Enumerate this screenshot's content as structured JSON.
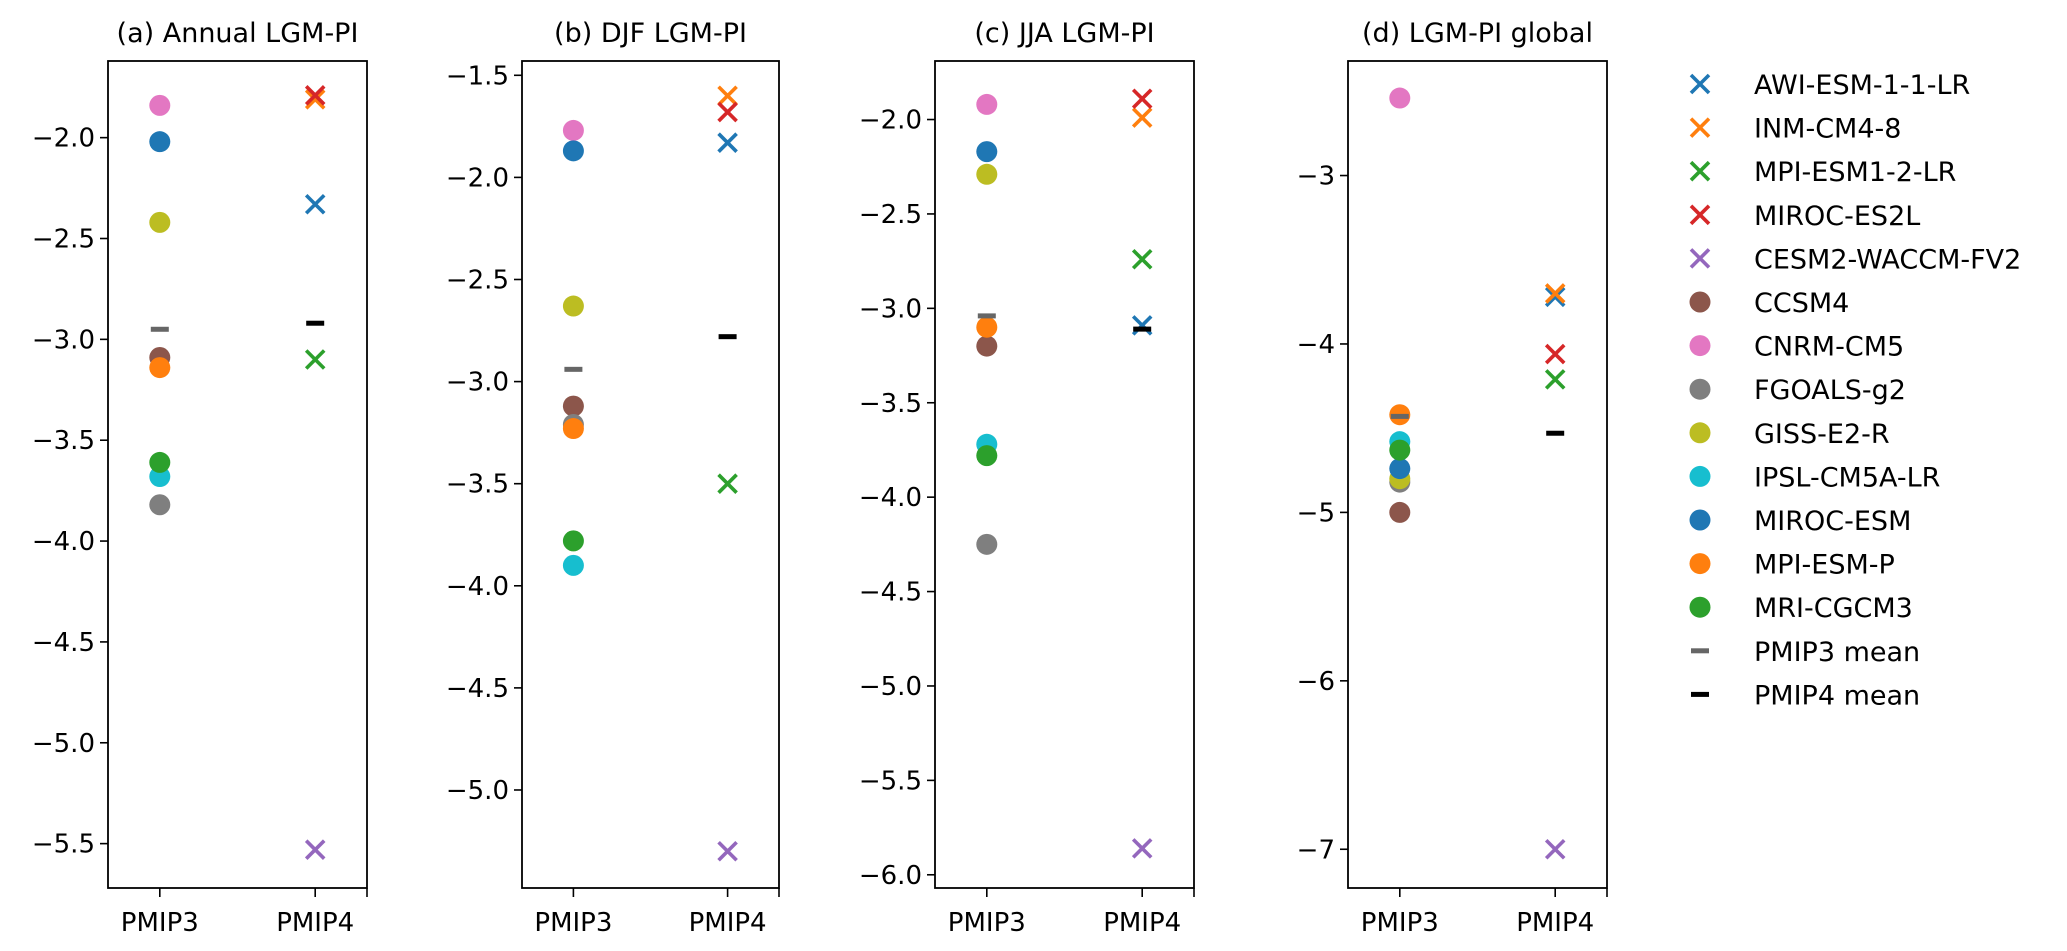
{
  "chart_data": [
    {
      "type": "scatter",
      "title": "(a) Annual LGM-PI",
      "xlabel": "",
      "ylabel": "",
      "categories": [
        "PMIP3",
        "PMIP4"
      ],
      "ylim": [
        -5.72,
        -1.62
      ],
      "yticks": [
        -2.0,
        -2.5,
        -3.0,
        -3.5,
        -4.0,
        -4.5,
        -5.0,
        -5.5
      ],
      "ytick_labels": [
        "−2.0",
        "−2.5",
        "−3.0",
        "−3.5",
        "−4.0",
        "−4.5",
        "−5.0",
        "−5.5"
      ],
      "grid": false,
      "pmip4": {
        "AWI-ESM-1-1-LR": -2.33,
        "INM-CM4-8": -1.81,
        "MPI-ESM1-2-LR": -3.1,
        "MIROC-ES2L": -1.79,
        "CESM2-WACCM-FV2": -5.53
      },
      "pmip3": {
        "CCSM4": -3.09,
        "CNRM-CM5": -1.84,
        "FGOALS-g2": -3.82,
        "GISS-E2-R": -2.42,
        "IPSL-CM5A-LR": -3.68,
        "MIROC-ESM": -2.02,
        "MPI-ESM-P": -3.14,
        "MRI-CGCM3": -3.61
      },
      "pmip3_mean": -2.95,
      "pmip4_mean": -2.92
    },
    {
      "type": "scatter",
      "title": "(b) DJF LGM-PI",
      "xlabel": "",
      "ylabel": "",
      "categories": [
        "PMIP3",
        "PMIP4"
      ],
      "ylim": [
        -5.48,
        -1.43
      ],
      "yticks": [
        -1.5,
        -2.0,
        -2.5,
        -3.0,
        -3.5,
        -4.0,
        -4.5,
        -5.0
      ],
      "ytick_labels": [
        "−1.5",
        "−2.0",
        "−2.5",
        "−3.0",
        "−3.5",
        "−4.0",
        "−4.5",
        "−5.0"
      ],
      "grid": false,
      "pmip4": {
        "AWI-ESM-1-1-LR": -1.83,
        "INM-CM4-8": -1.6,
        "MPI-ESM1-2-LR": -3.5,
        "MIROC-ES2L": -1.68,
        "CESM2-WACCM-FV2": -5.3
      },
      "pmip3": {
        "CCSM4": -3.12,
        "CNRM-CM5": -1.77,
        "FGOALS-g2": -3.21,
        "GISS-E2-R": -2.63,
        "IPSL-CM5A-LR": -3.9,
        "MIROC-ESM": -1.87,
        "MPI-ESM-P": -3.23,
        "MRI-CGCM3": -3.78
      },
      "pmip3_mean": -2.94,
      "pmip4_mean": -2.78
    },
    {
      "type": "scatter",
      "title": "(c) JJA LGM-PI",
      "xlabel": "",
      "ylabel": "",
      "categories": [
        "PMIP3",
        "PMIP4"
      ],
      "ylim": [
        -6.07,
        -1.69
      ],
      "yticks": [
        -2.0,
        -2.5,
        -3.0,
        -3.5,
        -4.0,
        -4.5,
        -5.0,
        -5.5,
        -6.0
      ],
      "ytick_labels": [
        "−2.0",
        "−2.5",
        "−3.0",
        "−3.5",
        "−4.0",
        "−4.5",
        "−5.0",
        "−5.5",
        "−6.0"
      ],
      "grid": false,
      "pmip4": {
        "AWI-ESM-1-1-LR": -3.09,
        "INM-CM4-8": -1.99,
        "MPI-ESM1-2-LR": -2.74,
        "MIROC-ES2L": -1.89,
        "CESM2-WACCM-FV2": -5.86
      },
      "pmip3": {
        "CCSM4": -3.2,
        "CNRM-CM5": -1.92,
        "FGOALS-g2": -4.25,
        "GISS-E2-R": -2.29,
        "IPSL-CM5A-LR": -3.72,
        "MIROC-ESM": -2.17,
        "MPI-ESM-P": -3.1,
        "MRI-CGCM3": -3.78
      },
      "pmip3_mean": -3.04,
      "pmip4_mean": -3.11
    },
    {
      "type": "scatter",
      "title": "(d) LGM-PI global",
      "xlabel": "",
      "ylabel": "",
      "categories": [
        "PMIP3",
        "PMIP4"
      ],
      "ylim": [
        -7.23,
        -2.32
      ],
      "yticks": [
        -3,
        -4,
        -5,
        -6,
        -7
      ],
      "ytick_labels": [
        "−3",
        "−4",
        "−5",
        "−6",
        "−7"
      ],
      "grid": false,
      "pmip4": {
        "AWI-ESM-1-1-LR": -3.72,
        "INM-CM4-8": -3.7,
        "MPI-ESM1-2-LR": -4.21,
        "MIROC-ES2L": -4.06,
        "CESM2-WACCM-FV2": -7.0
      },
      "pmip3": {
        "CCSM4": -5.0,
        "CNRM-CM5": -2.54,
        "FGOALS-g2": -4.82,
        "GISS-E2-R": -4.8,
        "IPSL-CM5A-LR": -4.58,
        "MIROC-ESM": -4.74,
        "MPI-ESM-P": -4.42,
        "MRI-CGCM3": -4.63
      },
      "pmip3_mean": -4.43,
      "pmip4_mean": -4.53
    }
  ],
  "legend": {
    "placement": "right",
    "entries": [
      {
        "label": "AWI-ESM-1-1-LR",
        "marker": "x",
        "color": "#1f77b4",
        "group": "pmip4"
      },
      {
        "label": "INM-CM4-8",
        "marker": "x",
        "color": "#ff7f0e",
        "group": "pmip4"
      },
      {
        "label": "MPI-ESM1-2-LR",
        "marker": "x",
        "color": "#2ca02c",
        "group": "pmip4"
      },
      {
        "label": "MIROC-ES2L",
        "marker": "x",
        "color": "#d62728",
        "group": "pmip4"
      },
      {
        "label": "CESM2-WACCM-FV2",
        "marker": "x",
        "color": "#9467bd",
        "group": "pmip4"
      },
      {
        "label": "CCSM4",
        "marker": "o",
        "color": "#8c564b",
        "group": "pmip3"
      },
      {
        "label": "CNRM-CM5",
        "marker": "o",
        "color": "#e377c2",
        "group": "pmip3"
      },
      {
        "label": "FGOALS-g2",
        "marker": "o",
        "color": "#7f7f7f",
        "group": "pmip3"
      },
      {
        "label": "GISS-E2-R",
        "marker": "o",
        "color": "#bcbd22",
        "group": "pmip3"
      },
      {
        "label": "IPSL-CM5A-LR",
        "marker": "o",
        "color": "#17becf",
        "group": "pmip3"
      },
      {
        "label": "MIROC-ESM",
        "marker": "o",
        "color": "#1f77b4",
        "group": "pmip3"
      },
      {
        "label": "MPI-ESM-P",
        "marker": "o",
        "color": "#ff7f0e",
        "group": "pmip3"
      },
      {
        "label": "MRI-CGCM3",
        "marker": "o",
        "color": "#2ca02c",
        "group": "pmip3"
      },
      {
        "label": "PMIP3 mean",
        "marker": "_",
        "color": "#666666",
        "group": "pmip3_mean"
      },
      {
        "label": "PMIP4 mean",
        "marker": "_",
        "color": "#000000",
        "group": "pmip4_mean"
      }
    ]
  }
}
